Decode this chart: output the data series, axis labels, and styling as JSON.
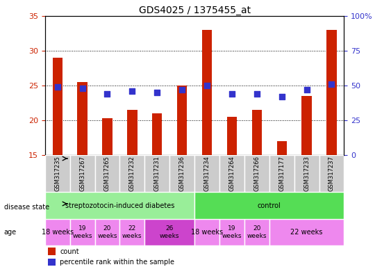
{
  "title": "GDS4025 / 1375455_at",
  "samples": [
    "GSM317235",
    "GSM317267",
    "GSM317265",
    "GSM317232",
    "GSM317231",
    "GSM317236",
    "GSM317234",
    "GSM317264",
    "GSM317266",
    "GSM317177",
    "GSM317233",
    "GSM317237"
  ],
  "counts": [
    29.0,
    25.5,
    20.3,
    21.5,
    21.0,
    25.0,
    33.0,
    20.5,
    21.5,
    17.0,
    23.5,
    33.0
  ],
  "percentile_ranks": [
    49,
    48,
    44,
    46,
    45,
    47,
    50,
    44,
    44,
    42,
    47,
    51
  ],
  "ylim": [
    15,
    35
  ],
  "y2lim": [
    0,
    100
  ],
  "yticks": [
    15,
    20,
    25,
    30,
    35
  ],
  "y2ticks": [
    0,
    25,
    50,
    75,
    100
  ],
  "y2tick_labels": [
    "0",
    "25",
    "50",
    "75",
    "100%"
  ],
  "bar_color": "#cc2200",
  "dot_color": "#3333cc",
  "disease_state_groups": [
    {
      "label": "streptozotocin-induced diabetes",
      "start": 0,
      "end": 6,
      "color": "#99ee99"
    },
    {
      "label": "control",
      "start": 6,
      "end": 12,
      "color": "#55dd55"
    }
  ],
  "age_groups": [
    {
      "label": "18 weeks",
      "start": 0,
      "end": 1,
      "color": "#ee88ee",
      "fontsize": 7,
      "two_line": false
    },
    {
      "label": "19\nweeks",
      "start": 1,
      "end": 2,
      "color": "#ee88ee",
      "fontsize": 6.5,
      "two_line": true
    },
    {
      "label": "20\nweeks",
      "start": 2,
      "end": 3,
      "color": "#ee88ee",
      "fontsize": 6.5,
      "two_line": true
    },
    {
      "label": "22\nweeks",
      "start": 3,
      "end": 4,
      "color": "#ee88ee",
      "fontsize": 6.5,
      "two_line": true
    },
    {
      "label": "26\nweeks",
      "start": 4,
      "end": 6,
      "color": "#cc44cc",
      "fontsize": 6.5,
      "two_line": true
    },
    {
      "label": "18 weeks",
      "start": 6,
      "end": 7,
      "color": "#ee88ee",
      "fontsize": 7,
      "two_line": false
    },
    {
      "label": "19\nweeks",
      "start": 7,
      "end": 8,
      "color": "#ee88ee",
      "fontsize": 6.5,
      "two_line": true
    },
    {
      "label": "20\nweeks",
      "start": 8,
      "end": 9,
      "color": "#ee88ee",
      "fontsize": 6.5,
      "two_line": true
    },
    {
      "label": "22 weeks",
      "start": 9,
      "end": 12,
      "color": "#ee88ee",
      "fontsize": 7,
      "two_line": false
    }
  ],
  "background_color": "#ffffff",
  "bar_width": 0.4,
  "dot_size": 40,
  "label_fontsize": 7,
  "sample_fontsize": 6
}
